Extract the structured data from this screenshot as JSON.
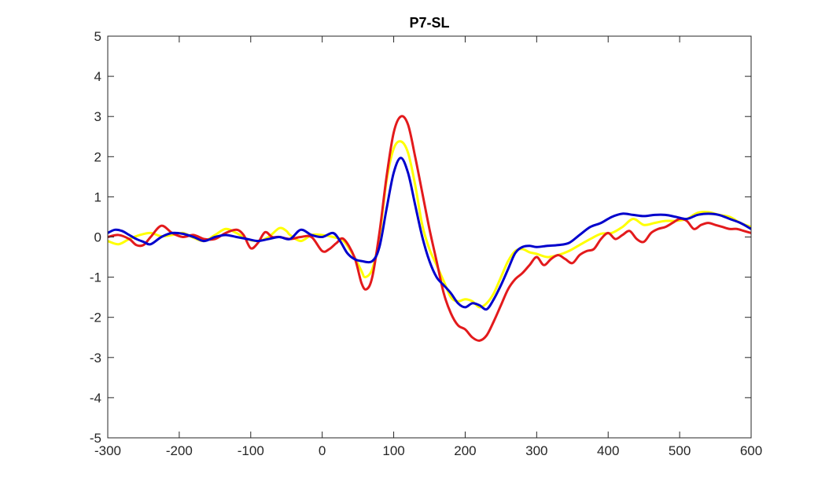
{
  "chart_data": {
    "type": "line",
    "title": "P7-SL",
    "xlabel": "",
    "ylabel": "",
    "xlim": [
      -300,
      600
    ],
    "ylim": [
      -5,
      5
    ],
    "x_ticks": [
      -300,
      -200,
      -100,
      0,
      100,
      200,
      300,
      400,
      500,
      600
    ],
    "y_ticks": [
      -5,
      -4,
      -3,
      -2,
      -1,
      0,
      1,
      2,
      3,
      4,
      5
    ],
    "grid": false,
    "legend": "none",
    "series": [
      {
        "color": "#ffff00",
        "x": [
          -300,
          -285,
          -270,
          -255,
          -240,
          -225,
          -210,
          -195,
          -180,
          -165,
          -150,
          -135,
          -120,
          -105,
          -90,
          -75,
          -60,
          -50,
          -45,
          -30,
          -15,
          0,
          15,
          30,
          45,
          55,
          60,
          70,
          80,
          90,
          100,
          110,
          120,
          130,
          140,
          150,
          160,
          170,
          180,
          190,
          200,
          210,
          220,
          230,
          240,
          250,
          260,
          270,
          280,
          290,
          300,
          315,
          330,
          345,
          360,
          375,
          390,
          405,
          420,
          435,
          450,
          465,
          480,
          495,
          510,
          525,
          540,
          555,
          570,
          585,
          600
        ],
        "y": [
          -0.1,
          -0.18,
          -0.05,
          0.05,
          0.1,
          0.02,
          0.05,
          0.1,
          -0.02,
          -0.1,
          0.05,
          0.2,
          0.1,
          -0.05,
          -0.1,
          0.0,
          0.22,
          0.15,
          0.05,
          -0.1,
          0.05,
          0.05,
          0.0,
          -0.1,
          -0.5,
          -0.85,
          -1.0,
          -0.8,
          0.0,
          1.4,
          2.2,
          2.38,
          2.1,
          1.3,
          0.3,
          -0.3,
          -0.7,
          -1.1,
          -1.5,
          -1.6,
          -1.55,
          -1.6,
          -1.75,
          -1.65,
          -1.4,
          -1.0,
          -0.6,
          -0.35,
          -0.3,
          -0.38,
          -0.42,
          -0.5,
          -0.45,
          -0.35,
          -0.2,
          -0.05,
          0.08,
          0.1,
          0.25,
          0.45,
          0.3,
          0.35,
          0.4,
          0.4,
          0.45,
          0.6,
          0.62,
          0.55,
          0.5,
          0.35,
          0.25
        ]
      },
      {
        "color": "#e31a1c",
        "x": [
          -300,
          -285,
          -270,
          -260,
          -250,
          -240,
          -225,
          -210,
          -195,
          -180,
          -165,
          -150,
          -135,
          -120,
          -110,
          -100,
          -90,
          -80,
          -70,
          -60,
          -45,
          -30,
          -15,
          0,
          10,
          20,
          30,
          45,
          55,
          62,
          70,
          80,
          90,
          100,
          110,
          120,
          130,
          140,
          150,
          160,
          170,
          180,
          190,
          200,
          210,
          220,
          230,
          240,
          250,
          260,
          270,
          280,
          290,
          300,
          310,
          320,
          330,
          340,
          350,
          360,
          370,
          380,
          390,
          400,
          410,
          420,
          430,
          440,
          450,
          460,
          470,
          480,
          490,
          500,
          510,
          520,
          530,
          540,
          550,
          560,
          570,
          580,
          590,
          600
        ],
        "y": [
          0.0,
          0.05,
          -0.05,
          -0.2,
          -0.2,
          0.0,
          0.28,
          0.1,
          0.0,
          0.05,
          -0.05,
          -0.05,
          0.1,
          0.18,
          0.05,
          -0.28,
          -0.15,
          0.12,
          0.0,
          0.0,
          -0.05,
          0.0,
          0.0,
          -0.35,
          -0.3,
          -0.15,
          -0.05,
          -0.5,
          -1.15,
          -1.3,
          -1.0,
          0.1,
          1.5,
          2.6,
          3.0,
          2.8,
          2.0,
          1.1,
          0.2,
          -0.6,
          -1.4,
          -1.9,
          -2.2,
          -2.3,
          -2.5,
          -2.58,
          -2.45,
          -2.1,
          -1.7,
          -1.3,
          -1.05,
          -0.9,
          -0.7,
          -0.5,
          -0.7,
          -0.55,
          -0.45,
          -0.55,
          -0.65,
          -0.45,
          -0.35,
          -0.3,
          -0.05,
          0.1,
          -0.05,
          0.05,
          0.15,
          -0.05,
          -0.12,
          0.1,
          0.2,
          0.25,
          0.35,
          0.45,
          0.4,
          0.2,
          0.3,
          0.35,
          0.3,
          0.25,
          0.2,
          0.2,
          0.15,
          0.1
        ]
      },
      {
        "color": "#0000cc",
        "x": [
          -300,
          -290,
          -280,
          -270,
          -260,
          -250,
          -240,
          -225,
          -210,
          -195,
          -180,
          -165,
          -150,
          -135,
          -120,
          -105,
          -90,
          -75,
          -60,
          -45,
          -30,
          -15,
          0,
          15,
          25,
          35,
          45,
          55,
          70,
          80,
          90,
          100,
          110,
          120,
          130,
          140,
          150,
          160,
          170,
          180,
          190,
          200,
          210,
          220,
          230,
          240,
          250,
          260,
          270,
          280,
          290,
          300,
          315,
          330,
          345,
          360,
          375,
          390,
          405,
          420,
          435,
          450,
          465,
          480,
          495,
          510,
          525,
          540,
          555,
          570,
          585,
          600
        ],
        "y": [
          0.1,
          0.18,
          0.15,
          0.05,
          -0.05,
          -0.12,
          -0.18,
          0.0,
          0.1,
          0.08,
          0.0,
          -0.1,
          0.0,
          0.05,
          0.0,
          -0.05,
          -0.1,
          -0.05,
          0.0,
          -0.05,
          0.18,
          0.05,
          0.0,
          0.1,
          -0.1,
          -0.4,
          -0.55,
          -0.6,
          -0.6,
          -0.25,
          0.7,
          1.6,
          1.97,
          1.6,
          0.8,
          0.0,
          -0.6,
          -1.0,
          -1.2,
          -1.4,
          -1.65,
          -1.75,
          -1.65,
          -1.7,
          -1.8,
          -1.55,
          -1.2,
          -0.8,
          -0.4,
          -0.25,
          -0.22,
          -0.25,
          -0.22,
          -0.2,
          -0.15,
          0.05,
          0.25,
          0.35,
          0.5,
          0.58,
          0.55,
          0.52,
          0.55,
          0.55,
          0.5,
          0.45,
          0.55,
          0.58,
          0.55,
          0.45,
          0.35,
          0.2
        ]
      }
    ]
  }
}
